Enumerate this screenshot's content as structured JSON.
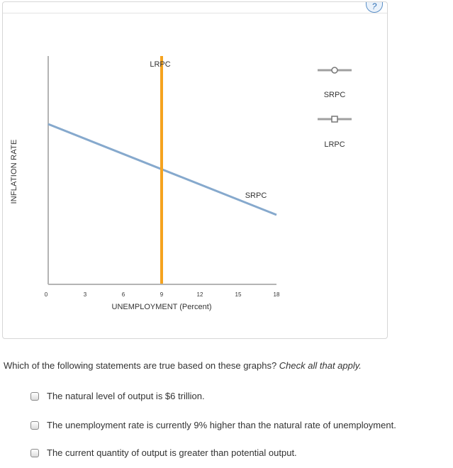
{
  "help": {
    "label": "?"
  },
  "graph": {
    "y_axis_title": "INFLATION RATE",
    "x_axis_title": "UNEMPLOYMENT (Percent)",
    "x_ticks": [
      "0",
      "3",
      "6",
      "9",
      "12",
      "15",
      "18"
    ],
    "curve_labels": {
      "lrpc": "LRPC",
      "srpc": "SRPC"
    },
    "colors": {
      "srpc": "#86a9cd",
      "lrpc": "#f5a31f",
      "axis": "#b4b4b4"
    }
  },
  "legend": {
    "items": [
      {
        "label": "SRPC",
        "icon": "circle-marker-icon"
      },
      {
        "label": "LRPC",
        "icon": "square-marker-icon"
      }
    ]
  },
  "question": {
    "text": "Which of the following statements are true based on these graphs?",
    "instruction": "Check all that apply."
  },
  "options": [
    {
      "label": "The natural level of output is $6 trillion."
    },
    {
      "label": "The unemployment rate is currently 9% higher than the natural rate of unemployment."
    },
    {
      "label": "The current quantity of output is greater than potential output."
    }
  ],
  "chart_data": {
    "type": "line",
    "xlabel": "UNEMPLOYMENT (Percent)",
    "ylabel": "INFLATION RATE",
    "xlim": [
      0,
      18
    ],
    "x_ticks": [
      0,
      3,
      6,
      9,
      12,
      15,
      18
    ],
    "series": [
      {
        "name": "SRPC",
        "x": [
          0,
          18
        ],
        "y_relative": [
          0.72,
          0.32
        ]
      },
      {
        "name": "LRPC",
        "x": [
          9,
          9
        ],
        "y_relative": [
          0,
          1
        ]
      }
    ],
    "grid": false,
    "legend": "right"
  }
}
